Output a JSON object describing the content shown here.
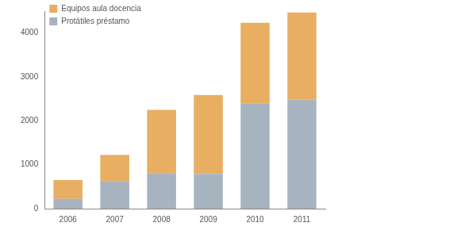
{
  "chart_data": {
    "type": "bar",
    "stacked": true,
    "categories": [
      "2006",
      "2007",
      "2008",
      "2009",
      "2010",
      "2011"
    ],
    "series": [
      {
        "name": "Protátiles préstamo",
        "color": "#a7b4c0",
        "values": [
          220,
          630,
          810,
          790,
          2400,
          2485
        ]
      },
      {
        "name": "Equipos aula docencia",
        "color": "#e8ae62",
        "values": [
          430,
          595,
          1440,
          1800,
          1835,
          1985
        ]
      }
    ],
    "ylim": [
      0,
      4500
    ],
    "yticks": [
      0,
      1000,
      2000,
      3000,
      4000
    ],
    "grid": false,
    "legend": "upper left"
  }
}
